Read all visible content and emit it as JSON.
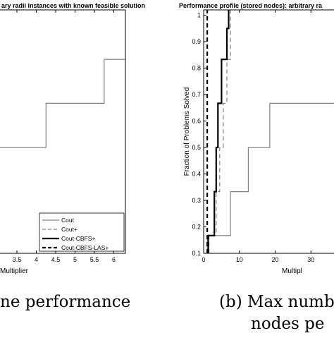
{
  "chart_data": [
    {
      "type": "line",
      "step": true,
      "title": "ary radii instances with known feasible solution",
      "xlabel": "Multiplier",
      "ylabel": "",
      "xlim": [
        2.7,
        6.3
      ],
      "ylim": [
        0.1,
        1.02
      ],
      "xticks": [
        "3.5",
        "4",
        "4.5",
        "5",
        "5.5",
        "6"
      ],
      "xtick_values": [
        3.5,
        4,
        4.5,
        5,
        5.5,
        6
      ],
      "legend_position": "bottom-right",
      "series": [
        {
          "name": "Cout",
          "style": "solid",
          "color": "#808080",
          "x": [
            2.7,
            4.25,
            4.25,
            5.75,
            5.75,
            6.3
          ],
          "y": [
            0.5,
            0.5,
            0.667,
            0.667,
            0.833,
            0.833
          ]
        },
        {
          "name": "Cout+",
          "style": "dashed",
          "color": "#808080",
          "x": [],
          "y": []
        },
        {
          "name": "Cout-CBFS+",
          "style": "solid",
          "color": "#000000",
          "x": [],
          "y": []
        },
        {
          "name": "Cout-CBFS-LAS+",
          "style": "dashed",
          "color": "#000000",
          "x": [],
          "y": []
        }
      ],
      "caption": "ne performance"
    },
    {
      "type": "line",
      "step": true,
      "title": "Performance profile (stored nodes): arbitrary ra",
      "xlabel": "Multipl",
      "ylabel": "Fraction of Problems Solved",
      "xlim": [
        0,
        40
      ],
      "ylim": [
        0.1,
        1.02
      ],
      "xticks": [
        "0",
        "10",
        "20",
        "30"
      ],
      "xtick_values": [
        0,
        10,
        20,
        30
      ],
      "yticks": [
        "0.1",
        "0.2",
        "0.3",
        "0.4",
        "0.5",
        "0.6",
        "0.7",
        "0.8",
        "0.9",
        "1"
      ],
      "ytick_values": [
        0.1,
        0.2,
        0.3,
        0.4,
        0.5,
        0.6,
        0.7,
        0.8,
        0.9,
        1
      ],
      "series": [
        {
          "name": "Cout",
          "style": "solid",
          "color": "#808080",
          "x": [
            1,
            1,
            7.5,
            7.5,
            12.5,
            12.5,
            18.5,
            18.5,
            40
          ],
          "y": [
            0.1,
            0.167,
            0.167,
            0.333,
            0.333,
            0.5,
            0.5,
            0.667,
            0.667
          ]
        },
        {
          "name": "Cout+",
          "style": "dashed",
          "color": "#808080",
          "x": [
            1.5,
            1.5,
            3.5,
            3.5,
            4.5,
            4.5,
            5.5,
            5.5,
            6.5,
            6.5,
            7.5,
            7.5
          ],
          "y": [
            0.1,
            0.167,
            0.167,
            0.333,
            0.333,
            0.5,
            0.5,
            0.667,
            0.667,
            0.833,
            0.833,
            1.02
          ]
        },
        {
          "name": "Cout-CBFS+",
          "style": "solid",
          "color": "#000000",
          "x": [
            1.3,
            1.3,
            3,
            3,
            3.5,
            3.5,
            4,
            4,
            5,
            5,
            6.5,
            6.5,
            7,
            7
          ],
          "y": [
            0.1,
            0.167,
            0.167,
            0.333,
            0.333,
            0.5,
            0.5,
            0.667,
            0.667,
            0.833,
            0.833,
            0.95,
            0.95,
            1.02
          ]
        },
        {
          "name": "Cout-CBFS-LAS+",
          "style": "dashed",
          "color": "#000000",
          "x": [
            1,
            1
          ],
          "y": [
            0.1,
            1.02
          ]
        }
      ],
      "caption_line1": "(b) Max numb",
      "caption_line2": "nodes pe"
    }
  ]
}
